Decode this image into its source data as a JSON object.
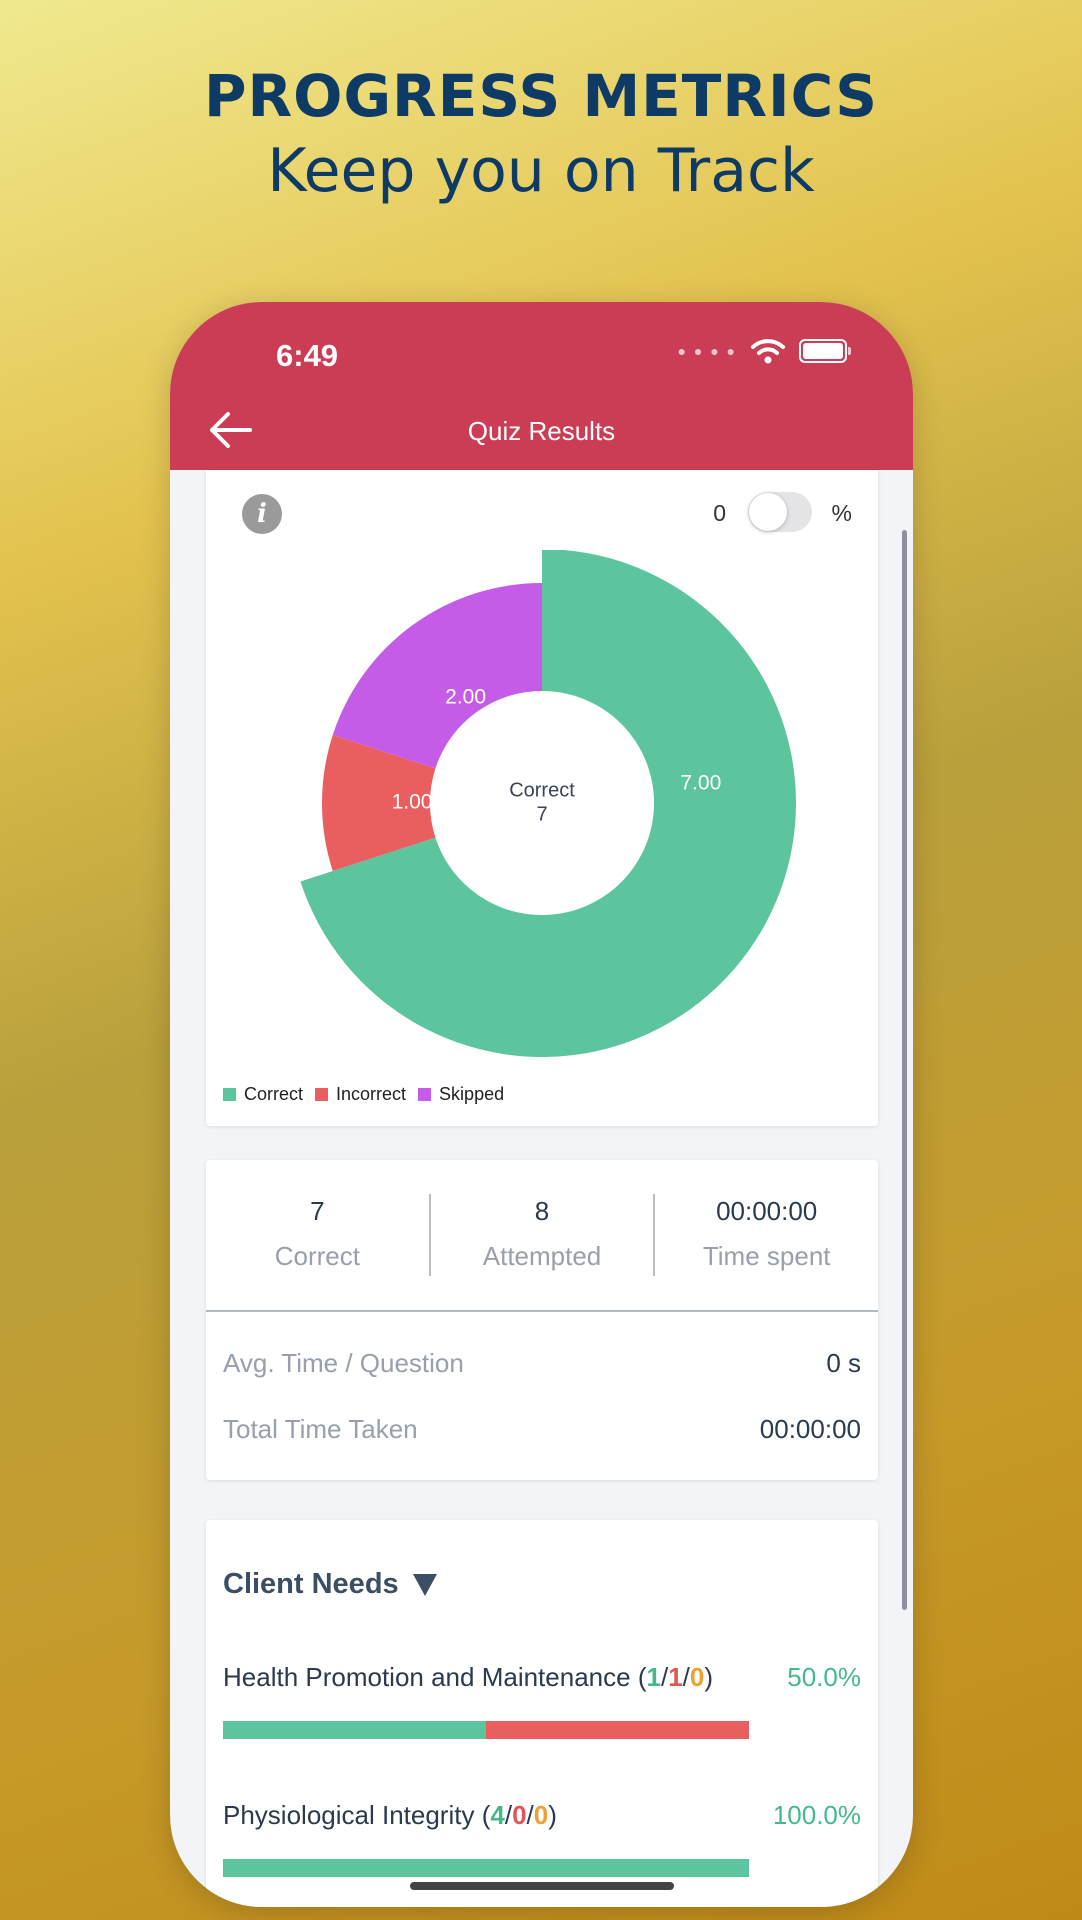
{
  "headline": {
    "line1": "PROGRESS METRICS",
    "line2": "Keep you on Track"
  },
  "status_bar": {
    "time": "6:49"
  },
  "app_bar": {
    "title": "Quiz Results"
  },
  "toggle": {
    "left_label": "0",
    "right_label": "%",
    "on": false
  },
  "chart_data": {
    "type": "pie",
    "categories": [
      "Correct",
      "Incorrect",
      "Skipped"
    ],
    "values": [
      7,
      1,
      2
    ],
    "labels": [
      "7.00",
      "1.00",
      "2.00"
    ],
    "colors": [
      "#5cc59d",
      "#e95e5e",
      "#c45ce8"
    ],
    "center_label": "Correct",
    "center_value": "7",
    "legend_position": "bottom-left"
  },
  "summary": {
    "stats": [
      {
        "value": "7",
        "label": "Correct"
      },
      {
        "value": "8",
        "label": "Attempted"
      },
      {
        "value": "00:00:00",
        "label": "Time spent"
      }
    ],
    "avg_time_label": "Avg. Time / Question",
    "avg_time_value": "0 s",
    "total_time_label": "Total Time Taken",
    "total_time_value": "00:00:00"
  },
  "client_needs": {
    "title": "Client Needs",
    "items": [
      {
        "name": "Health Promotion and Maintenance",
        "correct": "1",
        "incorrect": "1",
        "skipped": "0",
        "percent": "50.0%",
        "correct_fraction": 0.5,
        "incorrect_fraction": 0.5
      },
      {
        "name": "Physiological Integrity",
        "correct": "4",
        "incorrect": "0",
        "skipped": "0",
        "percent": "100.0%",
        "correct_fraction": 1.0,
        "incorrect_fraction": 0.0
      }
    ]
  }
}
